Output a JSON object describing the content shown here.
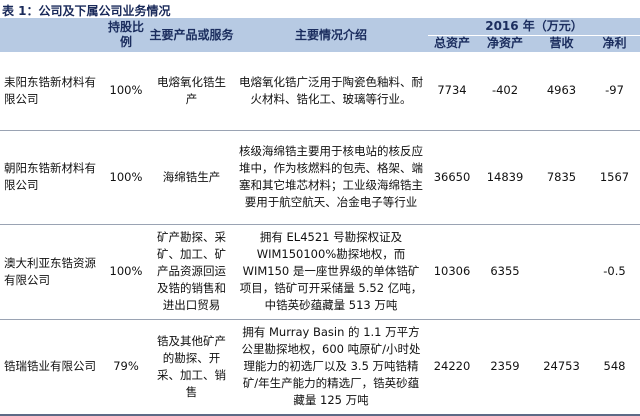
{
  "caption": "表 1：公司及下属公司业务情况",
  "header": {
    "company": "",
    "share_ratio": "持股比例",
    "products": "主要产品或服务",
    "description": "主要情况介绍",
    "year_group": "2016 年（万元）",
    "total_assets": "总资产",
    "net_assets": "净资产",
    "revenue": "营收",
    "net_profit": "净利"
  },
  "rows": [
    {
      "company": "耒阳东锆新材料有限公司",
      "share": "100%",
      "products": "电熔氧化锆生产",
      "description": "电熔氧化锆广泛用于陶瓷色釉料、耐火材料、锆化工、玻璃等行业。",
      "total_assets": "7734",
      "net_assets": "-402",
      "revenue": "4963",
      "net_profit": "-97"
    },
    {
      "company": "朝阳东锆新材料有限公司",
      "share": "100%",
      "products": "海绵锆生产",
      "description": "核级海绵锆主要用于核电站的核反应堆中，作为核燃料的包壳、格架、端塞和其它堆芯材料；工业级海绵锆主要用于航空航天、冶金电子等行业",
      "total_assets": "36650",
      "net_assets": "14839",
      "revenue": "7835",
      "net_profit": "1567"
    },
    {
      "company": "澳大利亚东锆资源有限公司",
      "share": "100%",
      "products": "矿产勘探、采矿、加工、矿产品资源回运及锆的销售和进出口贸易",
      "description": "拥有 EL4521 号勘探权证及WIM150100%勘探地权，而WIM150 是一座世界级的单体锆矿项目，锆矿可开采储量 5.52 亿吨，中锆英砂蕴藏量 513 万吨",
      "total_assets": "10306",
      "net_assets": "6355",
      "revenue": "",
      "net_profit": "-0.5"
    },
    {
      "company": "锆瑞锆业有限公司",
      "share": "79%",
      "products": "锆及其他矿产的勘探、开采、加工、销售",
      "description": "拥有 Murray Basin 的 1.1 万平方公里勘探地权，600 吨原矿/小时处理能力的初选厂以及 3.5 万吨锆精矿/年生产能力的精选厂，锆英砂蕴藏量 125 万吨",
      "total_assets": "24220",
      "net_assets": "2359",
      "revenue": "24753",
      "net_profit": "548"
    }
  ]
}
